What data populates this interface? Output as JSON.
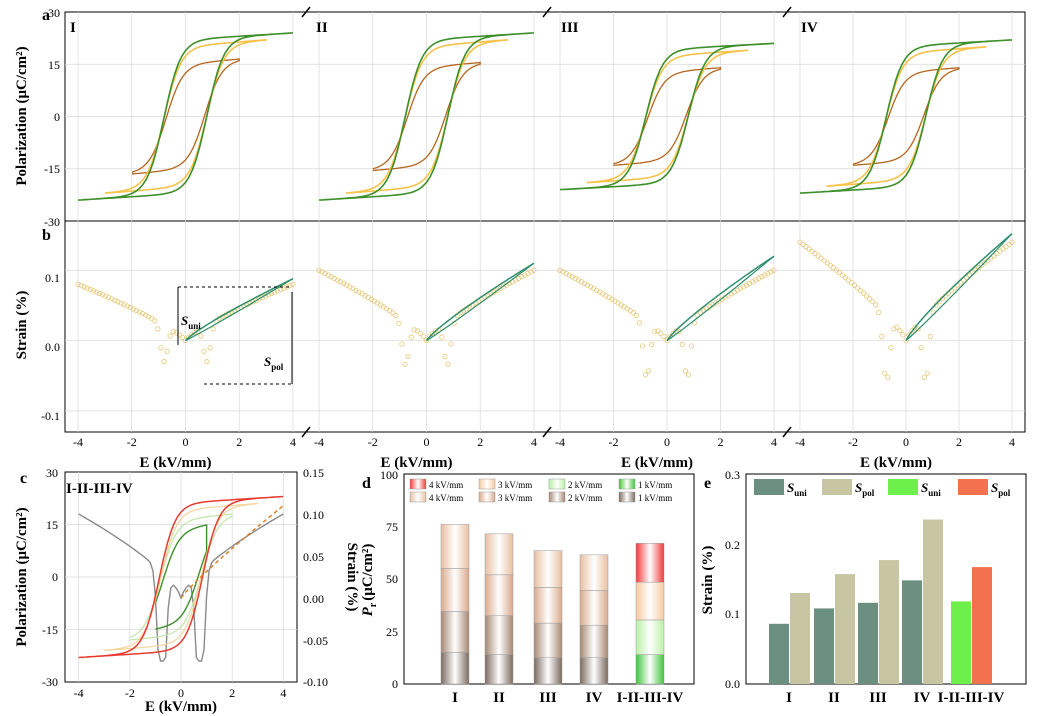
{
  "colors": {
    "green": "#3d8f2a",
    "orange_light": "#f5c24a",
    "brown": "#b5651d",
    "gray_curve": "#8a8a8a",
    "red": "#e8392f",
    "strain_marker": "#e6c878",
    "teal": "#2f8f6e",
    "bar_teal": "#6b8f80",
    "bar_khaki": "#c8c5a2",
    "bar_green": "#6ef04a",
    "bar_red": "#f4714f",
    "grid": "#d8d8d8"
  },
  "panels": {
    "a": {
      "letter": "a",
      "ylabel": "Polarization (μC/cm²)",
      "yticks": [
        "30",
        "15",
        "0",
        "-15",
        "-30"
      ],
      "subplots": [
        "I",
        "II",
        "III",
        "IV"
      ]
    },
    "b": {
      "letter": "b",
      "ylabel": "Strain (%)",
      "yticks": [
        "0.1",
        "0.0",
        "-0.1"
      ],
      "xticks": [
        "-4",
        "-2",
        "0",
        "2",
        "4"
      ],
      "xlabel": "E (kV/mm)",
      "annot_suni": "S",
      "annot_suni_sub": "uni",
      "annot_spol": "S",
      "annot_spol_sub": "pol"
    },
    "c": {
      "letter": "c",
      "title": "I-II-III-IV",
      "ylabel_left": "Polarization (μC/cm²)",
      "ylabel_right": "Strain (%)",
      "yticks_left": [
        "30",
        "15",
        "0",
        "-15",
        "-30"
      ],
      "yticks_right": [
        "0.15",
        "0.10",
        "0.05",
        "0.00",
        "-0.05",
        "-0.10"
      ],
      "xticks": [
        "-4",
        "-2",
        "0",
        "2",
        "4"
      ],
      "xlabel": "E (kV/mm)"
    },
    "d": {
      "letter": "d",
      "ylabel": "P",
      "ylabel_sub": "r",
      "ylabel_unit": "(μC/cm²)",
      "yticks": [
        "100",
        "75",
        "50",
        "25",
        "0"
      ],
      "legend": [
        "4 kV/mm",
        "3 kV/mm",
        "2 kV/mm",
        "1 kV/mm",
        "4 kV/mm",
        "3 kV/mm",
        "2 kV/mm",
        "1 kV/mm"
      ]
    },
    "e": {
      "letter": "e",
      "ylabel": "Strain (%)",
      "yticks": [
        "0.3",
        "0.2",
        "0.1",
        "0.0"
      ],
      "legend": [
        {
          "s": "S",
          "sub": "uni"
        },
        {
          "s": "S",
          "sub": "pol"
        },
        {
          "s": "S",
          "sub": "uni"
        },
        {
          "s": "S",
          "sub": "pol"
        }
      ]
    }
  },
  "chart_data": [
    {
      "type": "line",
      "panel": "a",
      "description_units": "P (μC/cm²) vs E (kV/mm), hysteresis loops at 2, 3, 4 kV/mm",
      "ylim": [
        -30,
        30
      ],
      "xlim": [
        -4,
        4
      ],
      "loops": [
        {
          "sub": "I",
          "Pmax_4": 24,
          "Pmax_3": 22,
          "Pmax_2": 16.5,
          "Ec": 0.8
        },
        {
          "sub": "II",
          "Pmax_4": 24,
          "Pmax_3": 22,
          "Pmax_2": 15.5,
          "Ec": 0.8
        },
        {
          "sub": "III",
          "Pmax_4": 21,
          "Pmax_3": 19,
          "Pmax_2": 14,
          "Ec": 0.8
        },
        {
          "sub": "IV",
          "Pmax_4": 22,
          "Pmax_3": 20,
          "Pmax_2": 14,
          "Ec": 0.75
        }
      ]
    },
    {
      "type": "line",
      "panel": "b",
      "ylim": [
        -0.13,
        0.17
      ],
      "xlim": [
        -4.3,
        4.3
      ],
      "curves": [
        {
          "sub": "I",
          "Smax": 0.085,
          "Smin": -0.052,
          "Sneg4": 0.08,
          "Suni": 0.088
        },
        {
          "sub": "II",
          "Smax": 0.1,
          "Smin": -0.062,
          "Sneg4": 0.1,
          "Suni": 0.11
        },
        {
          "sub": "III",
          "Smax": 0.1,
          "Smin": -0.08,
          "Sneg4": 0.1,
          "Suni": 0.12
        },
        {
          "sub": "IV",
          "Smax": 0.14,
          "Smin": -0.095,
          "Sneg4": 0.14,
          "Suni": 0.152
        }
      ]
    },
    {
      "type": "line",
      "panel": "c",
      "ylim_left": [
        -30,
        30
      ],
      "ylim_right": [
        -0.1,
        0.15
      ],
      "xlim": [
        -4.3,
        4.3
      ],
      "Pmax_4": 23,
      "Pmax_1": 15,
      "Smax": 0.1,
      "Smin": -0.07
    },
    {
      "type": "bar",
      "panel": "d",
      "stacked": true,
      "categories": [
        "I",
        "II",
        "III",
        "IV",
        "I-II-III-IV"
      ],
      "ylim": [
        0,
        100
      ],
      "series": [
        {
          "name": "1 kV/mm",
          "values": [
            15,
            14,
            12.5,
            12.5,
            14
          ]
        },
        {
          "name": "2 kV/mm",
          "values": [
            19.5,
            18.5,
            16.5,
            15.5,
            16.5
          ]
        },
        {
          "name": "3 kV/mm",
          "values": [
            20.5,
            19.5,
            17,
            16.5,
            18
          ]
        },
        {
          "name": "4 kV/mm",
          "values": [
            21,
            19.5,
            17.5,
            17,
            18.5
          ]
        }
      ]
    },
    {
      "type": "bar",
      "panel": "e",
      "categories": [
        "I",
        "II",
        "III",
        "IV",
        "I-II-III-IV"
      ],
      "ylim": [
        0,
        0.3
      ],
      "suni": [
        0.086,
        0.108,
        0.116,
        0.148,
        0.118
      ],
      "spol": [
        0.13,
        0.157,
        0.177,
        0.235,
        0.167
      ]
    }
  ]
}
